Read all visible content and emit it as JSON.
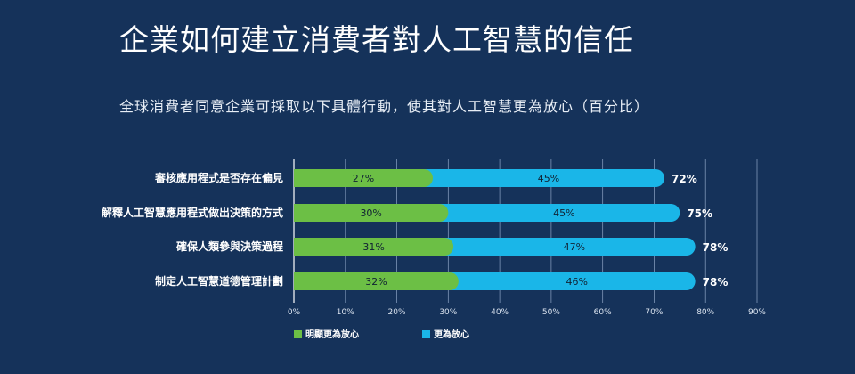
{
  "title": "企業如何建立消費者對人工智慧的信任",
  "subtitle": "全球消費者同意企業可採取以下具體行動，使其對人工智慧更為放心（百分比）",
  "chart_data": {
    "type": "bar",
    "orientation": "horizontal",
    "stacked": true,
    "categories": [
      "審核應用程式是否存在偏見",
      "解釋人工智慧應用程式做出決策的方式",
      "確保人類參與決策過程",
      "制定人工智慧道德管理計劃"
    ],
    "series": [
      {
        "name": "明顯更為放心",
        "color": "#6cbf45",
        "values": [
          27,
          30,
          31,
          32
        ],
        "labels": [
          "27%",
          "30%",
          "31%",
          "32%"
        ]
      },
      {
        "name": "更為放心",
        "color": "#1ab6e8",
        "values": [
          45,
          45,
          47,
          46
        ],
        "labels": [
          "45%",
          "45%",
          "47%",
          "46%"
        ]
      }
    ],
    "totals": [
      "72%",
      "75%",
      "78%",
      "78%"
    ],
    "xlim": [
      0,
      90
    ],
    "xticks": [
      "0%",
      "10%",
      "20%",
      "30%",
      "40%",
      "50%",
      "60%",
      "70%",
      "80%",
      "90%"
    ],
    "grid": true,
    "legend_position": "bottom-left"
  }
}
